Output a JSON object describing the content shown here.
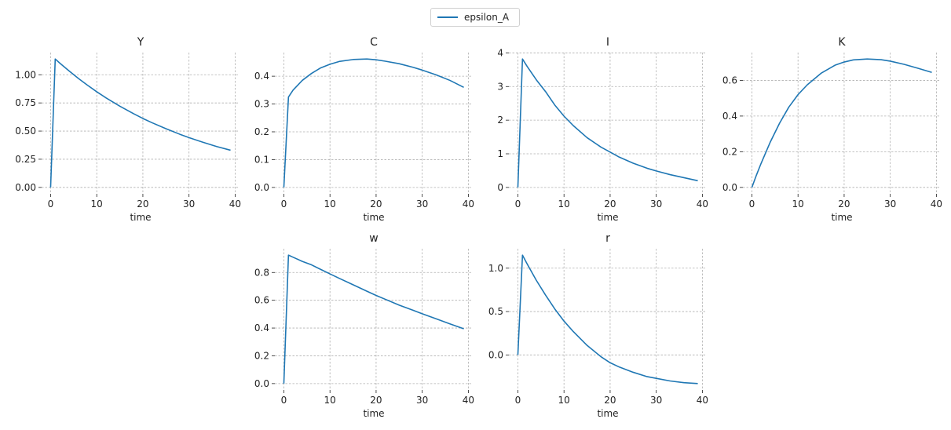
{
  "chart_data": {
    "type": "line",
    "legend": {
      "entries": [
        "epsilon_A"
      ],
      "placement": "top-center"
    },
    "series_color": "#1f77b4",
    "x": [
      0,
      1,
      2,
      4,
      6,
      8,
      10,
      12,
      15,
      18,
      20,
      22,
      25,
      28,
      30,
      33,
      36,
      39
    ],
    "xlabel": "time",
    "xlim": [
      -1.95,
      40.95
    ],
    "xticks": [
      0,
      10,
      20,
      30,
      40
    ],
    "xtick_labels": [
      "0",
      "10",
      "20",
      "30",
      "40"
    ],
    "grid": true,
    "subplots": [
      {
        "title": "Y",
        "ylim": [
          -0.057,
          1.197
        ],
        "yticks": [
          0,
          0.25,
          0.5,
          0.75,
          1.0
        ],
        "ytick_labels": [
          "0.00",
          "0.25",
          "0.50",
          "0.75",
          "1.00"
        ],
        "values": [
          0,
          1.14,
          1.103,
          1.034,
          0.968,
          0.907,
          0.849,
          0.795,
          0.721,
          0.654,
          0.612,
          0.574,
          0.521,
          0.472,
          0.442,
          0.401,
          0.363,
          0.33
        ]
      },
      {
        "title": "C",
        "ylim": [
          -0.023,
          0.485
        ],
        "yticks": [
          0,
          0.1,
          0.2,
          0.3,
          0.4
        ],
        "ytick_labels": [
          "0.0",
          "0.1",
          "0.2",
          "0.3",
          "0.4"
        ],
        "values": [
          0,
          0.325,
          0.35,
          0.385,
          0.41,
          0.43,
          0.443,
          0.453,
          0.46,
          0.462,
          0.459,
          0.454,
          0.445,
          0.432,
          0.422,
          0.405,
          0.385,
          0.36
        ]
      },
      {
        "title": "I",
        "ylim": [
          -0.19,
          4.01
        ],
        "yticks": [
          0,
          1,
          2,
          3,
          4
        ],
        "ytick_labels": [
          "0",
          "1",
          "2",
          "3",
          "4"
        ],
        "values": [
          0,
          3.82,
          3.6,
          3.2,
          2.85,
          2.45,
          2.12,
          1.84,
          1.48,
          1.2,
          1.05,
          0.9,
          0.72,
          0.57,
          0.49,
          0.38,
          0.29,
          0.2
        ]
      },
      {
        "title": "K",
        "ylim": [
          -0.036,
          0.756
        ],
        "yticks": [
          0,
          0.2,
          0.4,
          0.6
        ],
        "ytick_labels": [
          "0.0",
          "0.2",
          "0.4",
          "0.6"
        ],
        "values": [
          0,
          0.07,
          0.135,
          0.255,
          0.36,
          0.45,
          0.52,
          0.575,
          0.64,
          0.685,
          0.703,
          0.715,
          0.72,
          0.716,
          0.708,
          0.69,
          0.668,
          0.645
        ]
      },
      {
        "title": "w",
        "ylim": [
          -0.046,
          0.971
        ],
        "yticks": [
          0,
          0.2,
          0.4,
          0.6,
          0.8
        ],
        "ytick_labels": [
          "0.0",
          "0.2",
          "0.4",
          "0.6",
          "0.8"
        ],
        "values": [
          0,
          0.925,
          0.91,
          0.88,
          0.855,
          0.822,
          0.79,
          0.758,
          0.712,
          0.665,
          0.635,
          0.607,
          0.565,
          0.528,
          0.503,
          0.467,
          0.43,
          0.395
        ]
      },
      {
        "title": "r",
        "ylim": [
          -0.404,
          1.224
        ],
        "yticks": [
          0,
          0.5,
          1.0
        ],
        "ytick_labels": [
          "0.0",
          "0.5",
          "1.0"
        ],
        "values": [
          0,
          1.15,
          1.05,
          0.86,
          0.69,
          0.53,
          0.39,
          0.27,
          0.11,
          -0.02,
          -0.09,
          -0.14,
          -0.2,
          -0.25,
          -0.27,
          -0.3,
          -0.32,
          -0.33
        ]
      }
    ]
  }
}
